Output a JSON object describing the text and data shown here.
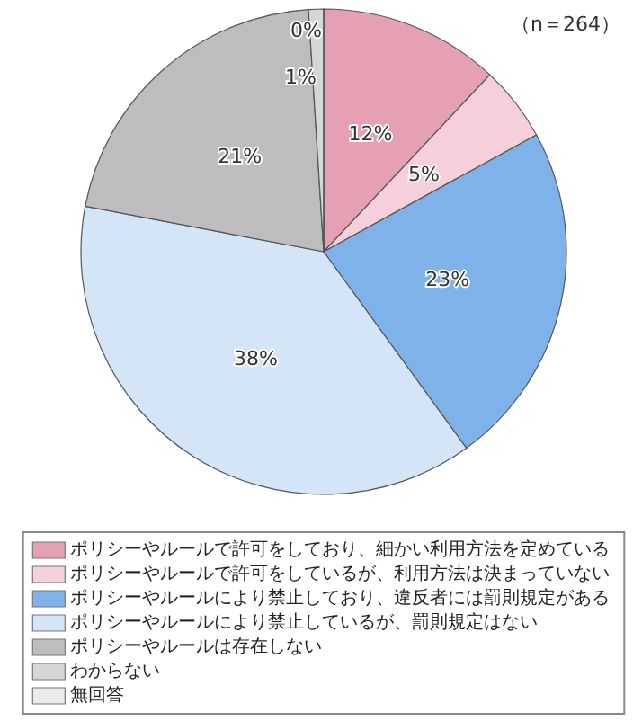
{
  "chart_data": {
    "type": "pie",
    "categories": [
      "ポリシーやルールで許可をしており、細かい利用方法を定めている",
      "ポリシーやルールで許可をしているが、利用方法は決まっていない",
      "ポリシーやルールにより禁止しており、違反者には罰則規定がある",
      "ポリシーやルールにより禁止しているが、罰則規定はない",
      "ポリシーやルールは存在しない",
      "わからない",
      "無回答"
    ],
    "values": [
      12,
      5,
      23,
      38,
      21,
      1,
      0
    ],
    "colors": [
      "#e6a0b4",
      "#f5d0da",
      "#7fb2e8",
      "#d4e5f8",
      "#bdbdbd",
      "#d6d6d6",
      "#ececec"
    ],
    "value_labels": [
      "12%",
      "5%",
      "23%",
      "38%",
      "21%",
      "1%",
      "0%"
    ],
    "legend": "bottom",
    "annotations": [
      "（n＝264）"
    ]
  }
}
